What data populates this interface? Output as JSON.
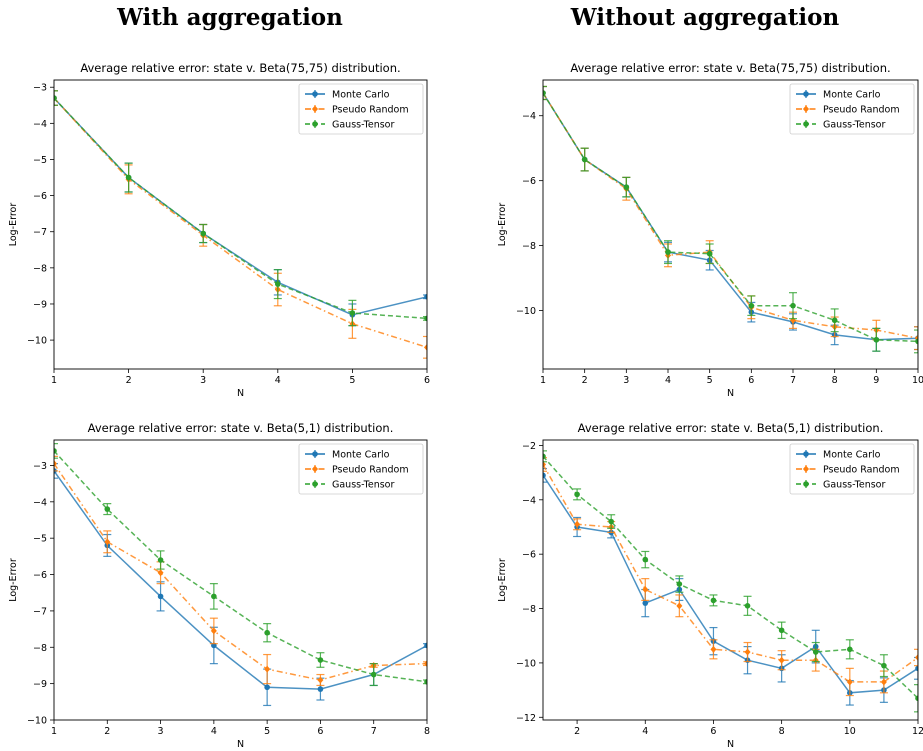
{
  "headings": {
    "left": "With aggregation",
    "right": "Without aggregation"
  },
  "colors": {
    "monte_carlo": "#1f77b4",
    "pseudo_random": "#ff7f0e",
    "gauss_tensor": "#2ca02c"
  },
  "legend": [
    "Monte Carlo",
    "Pseudo Random",
    "Gauss-Tensor"
  ],
  "chart_data": [
    {
      "type": "line",
      "panel": "top-left",
      "title": "Average relative error: state v. Beta(75,75) distribution.",
      "xlabel": "N",
      "ylabel": "Log-Error",
      "xlim": [
        1,
        6
      ],
      "ylim": [
        -10.8,
        -2.8
      ],
      "xticks": [
        1,
        2,
        3,
        4,
        5,
        6
      ],
      "yticks": [
        -10,
        -9,
        -8,
        -7,
        -6,
        -5,
        -4,
        -3
      ],
      "legend_position": "top-right",
      "x": [
        1,
        2,
        3,
        4,
        5,
        6
      ],
      "series": [
        {
          "name": "Monte Carlo",
          "values": [
            -3.3,
            -5.5,
            -7.05,
            -8.4,
            -9.3,
            -8.8
          ],
          "errors": [
            0.2,
            0.4,
            0.25,
            0.35,
            0.3,
            0.05
          ]
        },
        {
          "name": "Pseudo Random",
          "values": [
            -3.3,
            -5.55,
            -7.1,
            -8.6,
            -9.55,
            -10.2
          ],
          "errors": [
            0.2,
            0.4,
            0.3,
            0.45,
            0.4,
            0.3
          ]
        },
        {
          "name": "Gauss-Tensor",
          "values": [
            -3.3,
            -5.5,
            -7.05,
            -8.45,
            -9.25,
            -9.4
          ],
          "errors": [
            0.2,
            0.4,
            0.25,
            0.4,
            0.35,
            0.05
          ]
        }
      ]
    },
    {
      "type": "line",
      "panel": "top-right",
      "title": "Average relative error: state v. Beta(75,75) distribution.",
      "xlabel": "N",
      "ylabel": "Log-Error",
      "xlim": [
        1,
        10
      ],
      "ylim": [
        -11.8,
        -2.9
      ],
      "xticks": [
        1,
        2,
        3,
        4,
        5,
        6,
        7,
        8,
        9,
        10
      ],
      "yticks": [
        -10,
        -8,
        -6,
        -4
      ],
      "legend_position": "top-right",
      "x": [
        1,
        2,
        3,
        4,
        5,
        6,
        7,
        8,
        9,
        10
      ],
      "series": [
        {
          "name": "Monte Carlo",
          "values": [
            -3.3,
            -5.35,
            -6.2,
            -8.2,
            -8.45,
            -10.05,
            -10.35,
            -10.75,
            -10.9,
            -10.85
          ],
          "errors": [
            0.2,
            0.35,
            0.3,
            0.3,
            0.3,
            0.3,
            0.25,
            0.3,
            0.35,
            0.35
          ]
        },
        {
          "name": "Pseudo Random",
          "values": [
            -3.3,
            -5.35,
            -6.25,
            -8.3,
            -8.2,
            -9.9,
            -10.3,
            -10.5,
            -10.6,
            -10.85
          ],
          "errors": [
            0.2,
            0.35,
            0.35,
            0.35,
            0.35,
            0.35,
            0.25,
            0.3,
            0.3,
            0.35
          ]
        },
        {
          "name": "Gauss-Tensor",
          "values": [
            -3.3,
            -5.35,
            -6.2,
            -8.2,
            -8.25,
            -9.85,
            -9.85,
            -10.3,
            -10.9,
            -10.95
          ],
          "errors": [
            0.2,
            0.35,
            0.3,
            0.35,
            0.3,
            0.3,
            0.4,
            0.35,
            0.35,
            0.35
          ]
        }
      ]
    },
    {
      "type": "line",
      "panel": "bottom-left",
      "title": "Average relative error: state v. Beta(5,1) distribution.",
      "xlabel": "N",
      "ylabel": "Log-Error",
      "xlim": [
        1,
        8
      ],
      "ylim": [
        -10,
        -2.3
      ],
      "xticks": [
        1,
        2,
        3,
        4,
        5,
        6,
        7,
        8
      ],
      "yticks": [
        -10,
        -9,
        -8,
        -7,
        -6,
        -5,
        -4,
        -3
      ],
      "legend_position": "top-right",
      "x": [
        1,
        2,
        3,
        4,
        5,
        6,
        7,
        8
      ],
      "series": [
        {
          "name": "Monte Carlo",
          "values": [
            -3.15,
            -5.2,
            -6.6,
            -7.95,
            -9.1,
            -9.15,
            -8.75,
            -7.95
          ],
          "errors": [
            0.2,
            0.3,
            0.4,
            0.5,
            0.5,
            0.3,
            0.3,
            0.05
          ]
        },
        {
          "name": "Pseudo Random",
          "values": [
            -2.95,
            -5.1,
            -5.95,
            -7.55,
            -8.6,
            -8.9,
            -8.5,
            -8.45
          ],
          "errors": [
            0.2,
            0.3,
            0.3,
            0.35,
            0.4,
            0.15,
            0.05,
            0.05
          ]
        },
        {
          "name": "Gauss-Tensor",
          "values": [
            -2.6,
            -4.2,
            -5.6,
            -6.6,
            -7.6,
            -8.35,
            -8.75,
            -8.95
          ],
          "errors": [
            0.2,
            0.15,
            0.25,
            0.35,
            0.25,
            0.2,
            0.3,
            0.05
          ]
        }
      ]
    },
    {
      "type": "line",
      "panel": "bottom-right",
      "title": "Average relative error: state v. Beta(5,1) distribution.",
      "xlabel": "N",
      "ylabel": "Log-Error",
      "xlim": [
        1,
        12
      ],
      "ylim": [
        -12.1,
        -1.8
      ],
      "xticks": [
        2,
        4,
        6,
        8,
        10,
        12
      ],
      "yticks": [
        -12,
        -10,
        -8,
        -6,
        -4,
        -2
      ],
      "legend_position": "top-right",
      "x": [
        1,
        2,
        3,
        4,
        5,
        6,
        7,
        8,
        9,
        10,
        11,
        12
      ],
      "series": [
        {
          "name": "Monte Carlo",
          "values": [
            -3.1,
            -5.0,
            -5.2,
            -7.8,
            -7.3,
            -9.2,
            -9.9,
            -10.2,
            -9.4,
            -11.1,
            -11.0,
            -10.2
          ],
          "errors": [
            0.25,
            0.35,
            0.2,
            0.5,
            0.4,
            0.5,
            0.5,
            0.5,
            0.6,
            0.45,
            0.45,
            0.4
          ]
        },
        {
          "name": "Pseudo Random",
          "values": [
            -2.7,
            -4.9,
            -5.0,
            -7.3,
            -7.9,
            -9.5,
            -9.6,
            -9.9,
            -9.9,
            -10.7,
            -10.7,
            -9.8
          ],
          "errors": [
            0.25,
            0.2,
            0.2,
            0.4,
            0.4,
            0.35,
            0.35,
            0.35,
            0.4,
            0.5,
            0.4,
            0.3
          ]
        },
        {
          "name": "Gauss-Tensor",
          "values": [
            -2.4,
            -3.8,
            -4.8,
            -6.2,
            -7.1,
            -7.7,
            -7.9,
            -8.8,
            -9.6,
            -9.5,
            -10.1,
            -11.3
          ],
          "errors": [
            0.2,
            0.2,
            0.25,
            0.3,
            0.3,
            0.2,
            0.35,
            0.3,
            0.35,
            0.35,
            0.4,
            0.5
          ]
        }
      ]
    }
  ]
}
